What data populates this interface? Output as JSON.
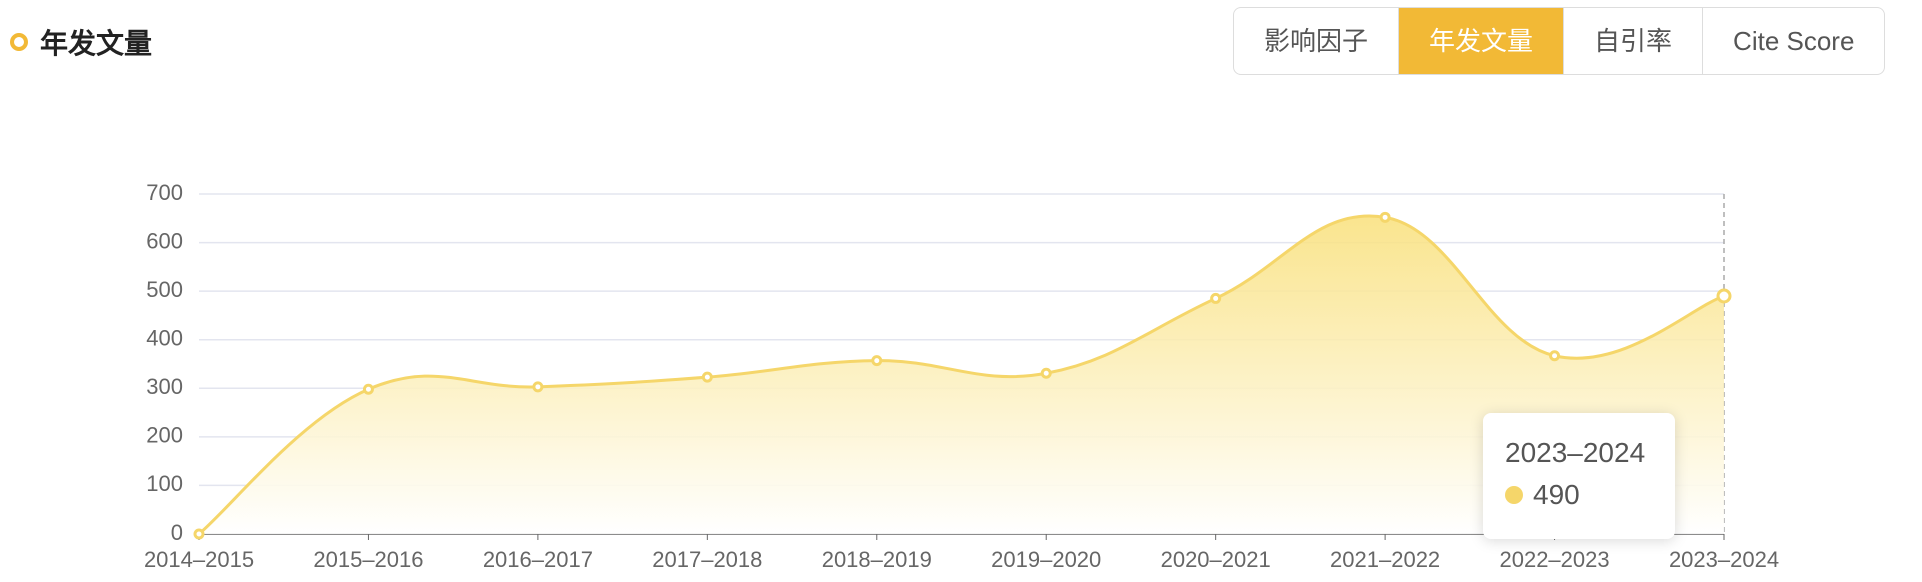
{
  "chart_data": {
    "type": "area",
    "title": "年发文量",
    "categories": [
      "2014–2015",
      "2015–2016",
      "2016–2017",
      "2017–2018",
      "2018–2019",
      "2019–2020",
      "2020–2021",
      "2021–2022",
      "2022–2023",
      "2023–2024"
    ],
    "series": [
      {
        "color": "#f5d66a",
        "values": [
          0,
          298,
          303,
          323,
          357,
          331,
          485,
          652,
          367,
          490
        ]
      }
    ],
    "ylim": [
      0,
      700
    ],
    "yticks": [
      0,
      100,
      200,
      300,
      400,
      500,
      600,
      700
    ],
    "grid": true
  },
  "tabs": [
    "影响因子",
    "年发文量",
    "自引率",
    "Cite Score"
  ]
}
